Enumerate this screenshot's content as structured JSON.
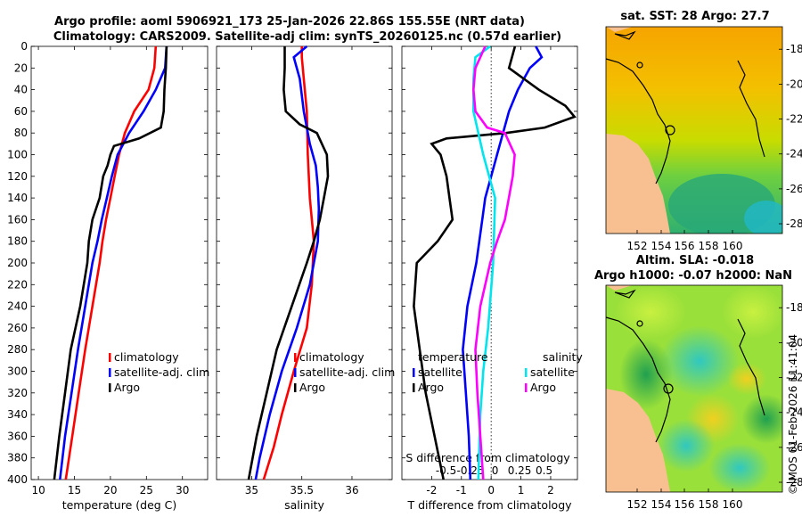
{
  "header": {
    "title_line1": "Argo profile: aoml 5906921_173 25-Jan-2026 22.86S 155.55E (NRT data)",
    "title_line2": "Climatology: CARS2009. Satellite-adj clim: synTS_20260125.nc (0.57d earlier)"
  },
  "depth_ticks": [
    "0",
    "20",
    "40",
    "60",
    "80",
    "100",
    "120",
    "140",
    "160",
    "180",
    "200",
    "220",
    "240",
    "260",
    "280",
    "300",
    "320",
    "340",
    "360",
    "380",
    "400"
  ],
  "colors": {
    "climatology": "#ff0000",
    "satellite": "#0000ff",
    "argo": "#000000",
    "s_satellite": "#00e5ee",
    "s_argo": "#ff00ff"
  },
  "chart_data": [
    {
      "type": "line",
      "id": "temperature",
      "xlabel": "temperature (deg C)",
      "xlim": [
        9,
        33.5
      ],
      "ylim": [
        0,
        400
      ],
      "xticks": [
        "10",
        "15",
        "20",
        "25",
        "30"
      ],
      "legend": {
        "position": "lower-right",
        "items": [
          "climatology",
          "satellite-adj. clim",
          "Argo"
        ]
      },
      "series": [
        {
          "name": "climatology",
          "color": "#ff0000",
          "depth": [
            0,
            20,
            40,
            60,
            80,
            100,
            120,
            140,
            160,
            180,
            200,
            240,
            280,
            320,
            360,
            400
          ],
          "values": [
            26.3,
            26.1,
            25.3,
            23.3,
            22.0,
            21.2,
            20.6,
            20.0,
            19.4,
            18.9,
            18.5,
            17.5,
            16.5,
            15.6,
            14.7,
            13.8
          ]
        },
        {
          "name": "satellite-adj. clim",
          "color": "#0000ff",
          "depth": [
            0,
            20,
            40,
            60,
            80,
            100,
            120,
            140,
            160,
            180,
            200,
            240,
            280,
            320,
            360,
            400
          ],
          "values": [
            27.8,
            27.6,
            26.3,
            24.6,
            22.6,
            21.0,
            20.2,
            19.5,
            18.8,
            18.2,
            17.5,
            16.5,
            15.5,
            14.6,
            13.7,
            13.0
          ]
        },
        {
          "name": "Argo",
          "color": "#000000",
          "depth": [
            0,
            20,
            40,
            60,
            75,
            85,
            92,
            100,
            110,
            120,
            140,
            160,
            180,
            200,
            240,
            280,
            320,
            360,
            400
          ],
          "values": [
            27.8,
            27.7,
            27.5,
            27.4,
            27.0,
            24.0,
            20.5,
            20.0,
            19.6,
            19.0,
            18.5,
            17.5,
            17.0,
            16.8,
            15.8,
            14.5,
            13.7,
            12.9,
            12.2
          ]
        }
      ]
    },
    {
      "type": "line",
      "id": "salinity",
      "xlabel": "salinity",
      "xlim": [
        34.65,
        36.4
      ],
      "ylim": [
        0,
        400
      ],
      "xticks": [
        "35",
        "35.5",
        "36"
      ],
      "legend": {
        "position": "lower-right",
        "items": [
          "climatology",
          "satellite-adj. clim",
          "Argo"
        ]
      },
      "series": [
        {
          "name": "climatology",
          "color": "#ff0000",
          "depth": [
            0,
            10,
            30,
            60,
            100,
            140,
            180,
            220,
            260,
            300,
            340,
            370,
            400
          ],
          "values": [
            35.5,
            35.5,
            35.52,
            35.55,
            35.56,
            35.58,
            35.62,
            35.6,
            35.55,
            35.42,
            35.3,
            35.22,
            35.12
          ]
        },
        {
          "name": "satellite-adj. clim",
          "color": "#0000ff",
          "depth": [
            0,
            10,
            30,
            60,
            90,
            110,
            130,
            150,
            180,
            220,
            260,
            300,
            340,
            380,
            400
          ],
          "values": [
            35.55,
            35.42,
            35.48,
            35.52,
            35.58,
            35.64,
            35.66,
            35.67,
            35.66,
            35.58,
            35.45,
            35.3,
            35.18,
            35.08,
            35.04
          ]
        },
        {
          "name": "Argo",
          "color": "#000000",
          "depth": [
            0,
            20,
            40,
            60,
            72,
            80,
            100,
            120,
            140,
            160,
            180,
            200,
            240,
            280,
            320,
            360,
            400
          ],
          "values": [
            35.33,
            35.33,
            35.32,
            35.34,
            35.48,
            35.65,
            35.75,
            35.76,
            35.72,
            35.68,
            35.62,
            35.55,
            35.4,
            35.25,
            35.15,
            35.05,
            34.97
          ]
        }
      ]
    },
    {
      "type": "line",
      "id": "differences",
      "xlabel": "T difference from climatology",
      "xlim": [
        -3.0,
        2.9
      ],
      "ylim": [
        0,
        400
      ],
      "xticks": [
        "-2",
        "-1",
        "0",
        "1",
        "2"
      ],
      "xlabel_top": "S difference from climatology",
      "s_xlim": [
        -0.95,
        0.84
      ],
      "s_xticks": [
        "-0.5",
        "-0.25",
        "0",
        "0.25",
        "0.5"
      ],
      "legend": {
        "position": "lower-left",
        "temperature_title": "temperature",
        "salinity_title": "salinity",
        "temperature_items": [
          "satellite",
          "Argo"
        ],
        "salinity_items": [
          "satellite",
          "Argo"
        ]
      },
      "series": [
        {
          "name": "T satellite",
          "axis": "T",
          "color": "#0000ff",
          "depth": [
            0,
            10,
            20,
            40,
            60,
            80,
            100,
            120,
            140,
            160,
            200,
            240,
            280,
            320,
            360,
            400
          ],
          "values": [
            1.5,
            1.7,
            1.3,
            0.9,
            0.6,
            0.4,
            0.2,
            0.0,
            -0.2,
            -0.3,
            -0.5,
            -0.8,
            -0.95,
            -0.85,
            -0.75,
            -0.7
          ]
        },
        {
          "name": "T Argo",
          "axis": "T",
          "color": "#000000",
          "depth": [
            0,
            20,
            40,
            55,
            65,
            75,
            80,
            85,
            90,
            100,
            120,
            140,
            160,
            180,
            200,
            240,
            280,
            320,
            360,
            400
          ],
          "values": [
            0.8,
            0.6,
            1.6,
            2.5,
            2.8,
            1.8,
            0.5,
            -1.5,
            -2.0,
            -1.7,
            -1.5,
            -1.4,
            -1.3,
            -1.8,
            -2.5,
            -2.6,
            -2.4,
            -2.2,
            -1.9,
            -1.6
          ]
        },
        {
          "name": "S satellite",
          "axis": "S",
          "color": "#00e5ee",
          "depth": [
            0,
            10,
            30,
            60,
            100,
            140,
            200,
            260,
            300,
            340,
            400
          ],
          "values": [
            -0.05,
            -0.2,
            -0.22,
            -0.22,
            -0.12,
            0.0,
            -0.02,
            -0.07,
            -0.12,
            -0.15,
            -0.17
          ]
        },
        {
          "name": "S Argo",
          "axis": "S",
          "color": "#ff00ff",
          "depth": [
            0,
            20,
            40,
            60,
            75,
            80,
            100,
            120,
            140,
            160,
            180,
            200,
            240,
            280,
            320,
            360,
            400
          ],
          "values": [
            -0.1,
            -0.2,
            -0.22,
            -0.2,
            -0.08,
            0.1,
            0.2,
            0.18,
            0.14,
            0.1,
            0.02,
            -0.05,
            -0.15,
            -0.2,
            -0.18,
            -0.15,
            -0.12
          ]
        }
      ]
    }
  ],
  "maps": {
    "sst": {
      "title": "sat. SST: 28 Argo: 27.7",
      "lat_ticks": [
        "-18",
        "-20",
        "-22",
        "-24",
        "-26",
        "-28"
      ],
      "lon_ticks": [
        "152",
        "154",
        "156",
        "158",
        "160"
      ]
    },
    "sla": {
      "title_line1": "Altim. SLA: -0.018",
      "title_line2": "Argo h1000: -0.07 h2000: NaN",
      "lat_ticks": [
        "-18",
        "-20",
        "-22",
        "-24",
        "-26",
        "-28"
      ],
      "lon_ticks": [
        "152",
        "154",
        "156",
        "158",
        "160"
      ]
    }
  },
  "credit": "©IMOS 01-Feb-2026 11:41:04"
}
